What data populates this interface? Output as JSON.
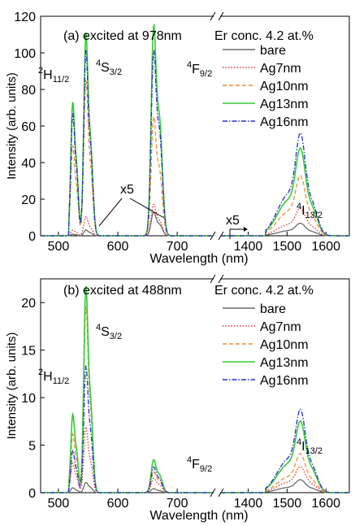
{
  "chart_data": [
    {
      "type": "line",
      "panel_label": "(a) excited at 978nm",
      "conc_label": "Er conc. 4.2 at.%",
      "ylabel": "Intensity (arb. units)",
      "xlabel": "Wavelength (nm)",
      "ylim": [
        0,
        120
      ],
      "yticks": [
        0,
        20,
        40,
        60,
        80,
        100,
        120
      ],
      "xlim_left": [
        470,
        760
      ],
      "xlim_right": [
        1330,
        1660
      ],
      "xticks_left": [
        500,
        600,
        700
      ],
      "xticks_right": [
        1400,
        1500,
        1600
      ],
      "magnify_labels": [
        "x5",
        "x5"
      ],
      "peak_labels": [
        {
          "base": "H",
          "sup": "2",
          "sub": "11/2"
        },
        {
          "base": "S",
          "sup": "4",
          "sub": "3/2"
        },
        {
          "base": "F",
          "sup": "4",
          "sub": "9/2"
        },
        {
          "base": "I",
          "sup": "4",
          "sub": "13/2"
        }
      ],
      "series": [
        {
          "name": "bare",
          "color": "#6b6b6b",
          "dash": "solid",
          "peaks": {
            "h": 0.8,
            "s": 3,
            "s2": 1.5,
            "f": 12,
            "f2": 6,
            "i": 5
          }
        },
        {
          "name": "Ag7nm",
          "color": "#e03030",
          "dash": "dot",
          "peaks": {
            "h": 3,
            "s": 10,
            "s2": 4,
            "f": 16,
            "f2": 8,
            "i": 11
          }
        },
        {
          "name": "Ag10nm",
          "color": "#f08a30",
          "dash": "dash",
          "peaks": {
            "h": 48,
            "s": 80,
            "s2": 35,
            "f": 60,
            "f2": 35,
            "i": 24
          }
        },
        {
          "name": "Ag13nm",
          "color": "#33cc33",
          "dash": "solid",
          "peaks": {
            "h": 71,
            "s": 104,
            "s2": 48,
            "f": 106,
            "f2": 62,
            "i": 35
          }
        },
        {
          "name": "Ag16nm",
          "color": "#2a2ad0",
          "dash": "dashdot",
          "peaks": {
            "h": 65,
            "s": 95,
            "s2": 45,
            "f": 93,
            "f2": 55,
            "i": 41
          }
        }
      ]
    },
    {
      "type": "line",
      "panel_label": "(b) excited at 488nm",
      "conc_label": "Er conc. 4.2 at.%",
      "ylabel": "Intensity (arb. units)",
      "xlabel": "Wavelength (nm)",
      "ylim": [
        0,
        22.5
      ],
      "yticks": [
        0,
        5,
        10,
        15,
        20
      ],
      "xlim_left": [
        470,
        760
      ],
      "xlim_right": [
        1330,
        1660
      ],
      "xticks_left": [
        500,
        600,
        700
      ],
      "xticks_right": [
        1400,
        1500,
        1600
      ],
      "peak_labels": [
        {
          "base": "H",
          "sup": "2",
          "sub": "11/2"
        },
        {
          "base": "S",
          "sup": "4",
          "sub": "3/2"
        },
        {
          "base": "F",
          "sup": "4",
          "sub": "9/2"
        },
        {
          "base": "I",
          "sup": "4",
          "sub": "13/2"
        }
      ],
      "series": [
        {
          "name": "bare",
          "color": "#6b6b6b",
          "dash": "solid",
          "peaks": {
            "h": 0.5,
            "s": 1.0,
            "s2": 0.5,
            "f": 0.4,
            "f2": 0.2,
            "i": 1.0
          }
        },
        {
          "name": "Ag7nm",
          "color": "#e03030",
          "dash": "dot",
          "peaks": {
            "h": 3,
            "s": 6.5,
            "s2": 3,
            "f": 1.4,
            "f2": 0.8,
            "i": 2.0
          }
        },
        {
          "name": "Ag10nm",
          "color": "#f08a30",
          "dash": "dash",
          "peaks": {
            "h": 6,
            "s": 18.5,
            "s2": 8,
            "f": 2.0,
            "f2": 1.2,
            "i": 3.0
          }
        },
        {
          "name": "Ag13nm",
          "color": "#33cc33",
          "dash": "solid",
          "peaks": {
            "h": 8,
            "s": 20.5,
            "s2": 9,
            "f": 3.2,
            "f2": 1.8,
            "i": 5.5
          }
        },
        {
          "name": "Ag16nm",
          "color": "#2a2ad0",
          "dash": "dashdot",
          "peaks": {
            "h": 4.3,
            "s": 12.5,
            "s2": 6,
            "f": 2.5,
            "f2": 1.4,
            "i": 6.4
          }
        }
      ]
    }
  ]
}
